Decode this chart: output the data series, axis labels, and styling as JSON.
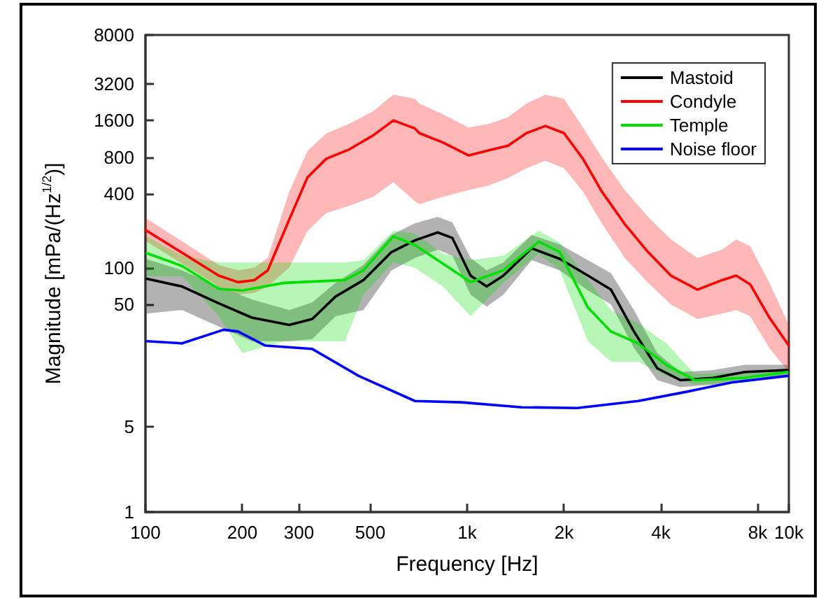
{
  "chart_data": {
    "type": "line",
    "xlabel": "Frequency [Hz]",
    "ylabel": "Magnitude [mPa/(Hz$^{1/2}$)]",
    "log": "xy",
    "xlim": [
      100,
      10000
    ],
    "xticks": [
      100,
      200,
      300,
      500,
      {
        "value": 1000,
        "label": "1k"
      },
      {
        "value": 2000,
        "label": "2k"
      },
      {
        "value": 4000,
        "label": "4k"
      },
      {
        "value": 8000,
        "label": "8k"
      },
      {
        "value": 10000,
        "label": "10k"
      }
    ],
    "ylim": [
      1,
      8000
    ],
    "yticks": [
      1,
      5,
      50,
      100,
      400,
      800,
      1600,
      3200,
      8000
    ],
    "grid": false,
    "legend": "top right",
    "marker": "none",
    "line_style": "solid",
    "series": [
      {
        "name": "Mastoid",
        "color": "#000000",
        "x": [
          101,
          130,
          169,
          214,
          280,
          330,
          390,
          476,
          582,
          688,
          810,
          899,
          1025,
          1150,
          1296,
          1586,
          1940,
          2375,
          2800,
          3300,
          3900,
          4600,
          5800,
          7300,
          9900
        ],
        "values": [
          81,
          70,
          51,
          39,
          34,
          38,
          58,
          79,
          134,
          167,
          194,
          175,
          86,
          70,
          86,
          144,
          118,
          86,
          66,
          30,
          15,
          12,
          12.5,
          14,
          14.5
        ],
        "lower": [
          42,
          45,
          33,
          25,
          25,
          26,
          40,
          45,
          95,
          120,
          140,
          125,
          60,
          48,
          60,
          115,
          95,
          65,
          50,
          22,
          12,
          10.5,
          11,
          12.5,
          13
        ],
        "upper": [
          117,
          95,
          70,
          55,
          45,
          52,
          75,
          105,
          185,
          230,
          260,
          235,
          120,
          95,
          110,
          185,
          155,
          115,
          90,
          45,
          20,
          14,
          14.5,
          16,
          16
        ]
      },
      {
        "name": "Condyle",
        "color": "#ff0000",
        "x": [
          100,
          125,
          169,
          194,
          218,
          240,
          280,
          319,
          365,
          430,
          510,
          590,
          688,
          710,
          840,
          1010,
          1170,
          1340,
          1530,
          1750,
          2000,
          2290,
          2620,
          3090,
          3650,
          4300,
          5200,
          6200,
          6860,
          7580,
          8700,
          10000
        ],
        "values": [
          203,
          141,
          86,
          76,
          79,
          95,
          248,
          547,
          778,
          927,
          1205,
          1600,
          1375,
          1260,
          1057,
          827,
          912,
          995,
          1260,
          1440,
          1260,
          778,
          420,
          227,
          134,
          86,
          66,
          79,
          86,
          73,
          39,
          23
        ],
        "lower": [
          165,
          115,
          70,
          60,
          62,
          70,
          100,
          200,
          280,
          320,
          380,
          500,
          350,
          330,
          380,
          430,
          470,
          540,
          650,
          750,
          650,
          420,
          230,
          120,
          75,
          50,
          38,
          42,
          45,
          40,
          22,
          14
        ],
        "upper": [
          255,
          175,
          105,
          95,
          100,
          120,
          420,
          900,
          1250,
          1500,
          1900,
          2600,
          2400,
          2200,
          1800,
          1400,
          1500,
          1700,
          2200,
          2600,
          2400,
          1400,
          800,
          430,
          260,
          170,
          120,
          140,
          170,
          150,
          75,
          34
        ]
      },
      {
        "name": "Temple",
        "color": "#00e000",
        "x": [
          101,
          130,
          169,
          200,
          270,
          417,
          476,
          590,
          688,
          840,
          1025,
          1296,
          1670,
          1940,
          2375,
          2800,
          3400,
          4160,
          5100,
          7300,
          9900
        ],
        "values": [
          131,
          103,
          67,
          65,
          75,
          79,
          95,
          180,
          153,
          108,
          76,
          95,
          163,
          134,
          47,
          30,
          24,
          16,
          12,
          12.5,
          14
        ],
        "lower": [
          85,
          85,
          40,
          20,
          25,
          25,
          60,
          110,
          100,
          70,
          40,
          75,
          130,
          95,
          25,
          17,
          17,
          13,
          11,
          11.5,
          13
        ],
        "upper": [
          180,
          125,
          110,
          110,
          110,
          110,
          115,
          200,
          190,
          130,
          115,
          125,
          200,
          160,
          80,
          45,
          35,
          24,
          13.5,
          14,
          15
        ]
      },
      {
        "name": "Noise floor",
        "color": "#0000ff",
        "x": [
          101,
          130,
          175,
          194,
          236,
          330,
          460,
          688,
          960,
          1480,
          2200,
          3400,
          4770,
          6640,
          9900
        ],
        "values": [
          25,
          24,
          31,
          30,
          23,
          21.6,
          13,
          8.1,
          7.9,
          7.2,
          7.1,
          8.1,
          9.6,
          11.5,
          13
        ]
      }
    ]
  }
}
